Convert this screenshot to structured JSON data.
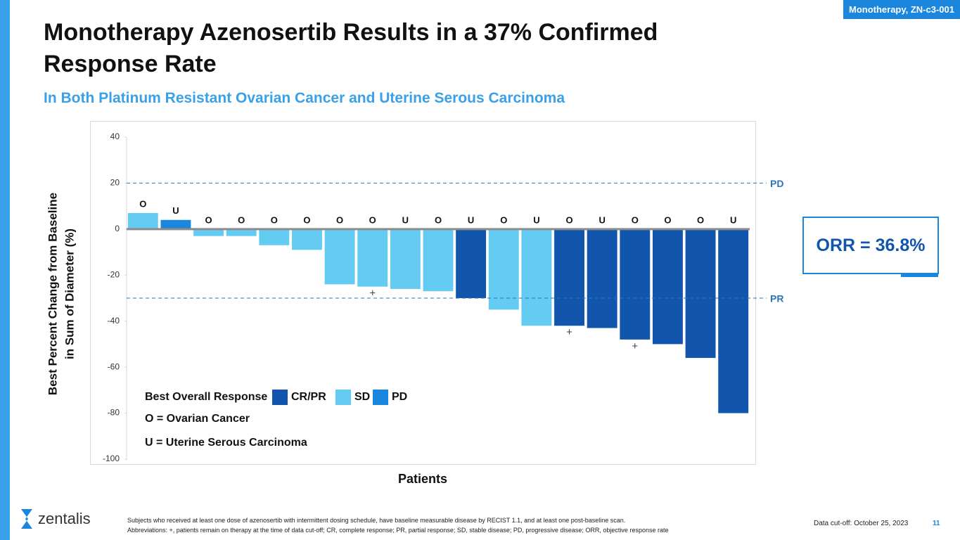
{
  "slide": {
    "tag": "Monotherapy, ZN-c3-001",
    "title": "Monotherapy Azenosertib Results in a 37% Confirmed Response Rate",
    "subtitle": "In Both Platinum Resistant Ovarian Cancer and Uterine Serous Carcinoma",
    "callout": "ORR = 36.8%",
    "logo": "zentalis",
    "footnotes": [
      "Subjects who received at least one dose of azenosertib with intermittent dosing schedule, have baseline measurable disease by RECIST 1.1, and at least one post-baseline scan.",
      "Abbreviations: +, patients remain on therapy at the time of data cut-off; CR, complete response; PR, partial response; SD, stable disease; PD, progressive disease; ORR, objective response rate"
    ],
    "cutoff": "Data cut-off: October 25, 2023",
    "page": "11"
  },
  "chart_data": {
    "type": "bar",
    "y_label": [
      "Best Percent Change from Baseline",
      "in Sum of Diameter (%)"
    ],
    "x_label": "Patients",
    "categories": [
      "O",
      "U",
      "O",
      "O",
      "O",
      "O",
      "O",
      "O",
      "U",
      "O",
      "U",
      "O",
      "U",
      "O",
      "U",
      "O",
      "O",
      "O",
      "U"
    ],
    "values": [
      7,
      4,
      -3,
      -3,
      -7,
      -9,
      -24,
      -25,
      -26,
      -27,
      -30,
      -35,
      -42,
      -42,
      -43,
      -48,
      -50,
      -56,
      -80
    ],
    "colors": [
      "#64ccf2",
      "#1a86dd",
      "#64ccf2",
      "#64ccf2",
      "#64ccf2",
      "#64ccf2",
      "#64ccf2",
      "#64ccf2",
      "#64ccf2",
      "#64ccf2",
      "#1155ad",
      "#64ccf2",
      "#64ccf2",
      "#1155ad",
      "#1155ad",
      "#1155ad",
      "#1155ad",
      "#1155ad",
      "#1155ad"
    ],
    "bar_notes": [
      null,
      null,
      null,
      null,
      null,
      null,
      null,
      "+",
      null,
      null,
      null,
      null,
      null,
      "+",
      null,
      "+",
      null,
      null,
      null
    ],
    "ylim": [
      -100,
      40
    ],
    "yticks": [
      -100,
      -80,
      -60,
      -40,
      -20,
      0,
      20,
      40
    ],
    "reference_lines": [
      {
        "value": 20,
        "label": "PD"
      },
      {
        "value": -30,
        "label": "PR"
      }
    ],
    "legend_title": "Best Overall Response",
    "legend": [
      {
        "name": "CR/PR",
        "color": "#1155ad"
      },
      {
        "name": "SD",
        "color": "#64ccf2"
      },
      {
        "name": "PD",
        "color": "#1a86dd"
      }
    ],
    "key": [
      "O = Ovarian Cancer",
      "U = Uterine Serous Carcinoma"
    ]
  }
}
